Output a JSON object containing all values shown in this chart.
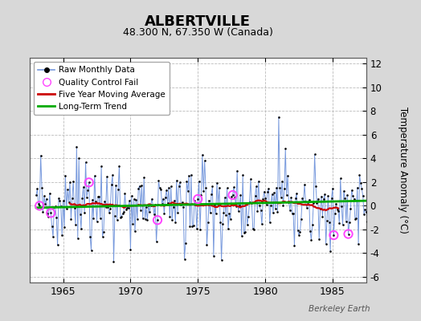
{
  "title": "ALBERTVILLE",
  "subtitle": "48.300 N, 67.350 W (Canada)",
  "ylabel": "Temperature Anomaly (°C)",
  "watermark": "Berkeley Earth",
  "xlim": [
    1962.5,
    1987.5
  ],
  "ylim": [
    -6.5,
    12.5
  ],
  "yticks": [
    -6,
    -4,
    -2,
    0,
    2,
    4,
    6,
    8,
    10,
    12
  ],
  "xticks": [
    1965,
    1970,
    1975,
    1980,
    1985
  ],
  "background_color": "#d8d8d8",
  "plot_background": "#ffffff",
  "grid_color": "#bbbbbb",
  "raw_line_color": "#7799dd",
  "raw_dot_color": "#000000",
  "ma_color": "#cc0000",
  "trend_color": "#00aa00",
  "qc_color": "#ff44ff"
}
